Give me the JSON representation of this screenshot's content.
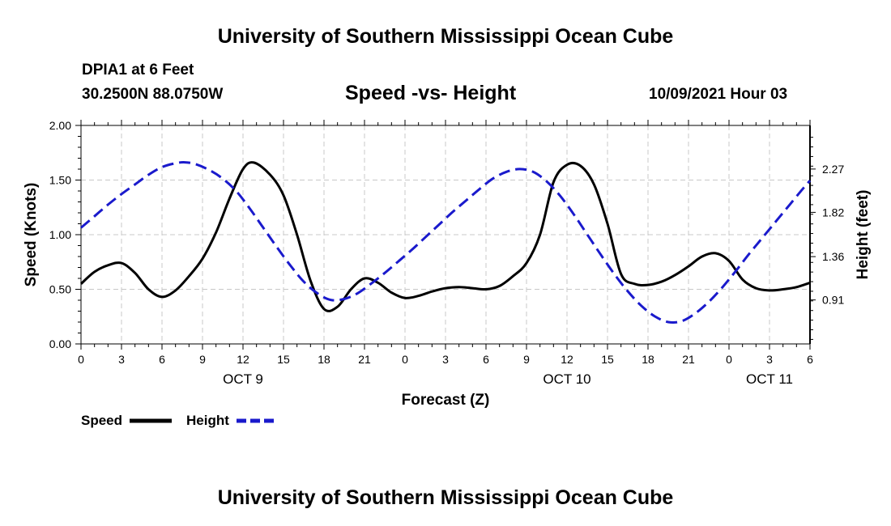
{
  "header": {
    "title": "University of Southern Mississippi Ocean Cube",
    "station": "DPIA1 at 6 Feet",
    "coords": "30.2500N  88.0750W",
    "datetime": "10/09/2021 Hour 03"
  },
  "footer": {
    "title": "University of Southern Mississippi Ocean Cube"
  },
  "colors": {
    "speed": "#000000",
    "height": "#1a1acc",
    "grid": "#c8c8c8"
  },
  "chart_data": {
    "type": "line",
    "title": "Speed -vs- Height",
    "xlabel": "Forecast (Z)",
    "ylabel": "Speed (Knots)",
    "y2label": "Height (feet)",
    "xlim": [
      0,
      54
    ],
    "ylim": [
      0,
      2
    ],
    "y2lim": [
      0.453,
      2.723
    ],
    "x_ticks": [
      0,
      3,
      6,
      9,
      12,
      15,
      18,
      21,
      24,
      27,
      30,
      33,
      36,
      39,
      42,
      45,
      48,
      51,
      54
    ],
    "x_tick_labels": [
      "0",
      "3",
      "6",
      "9",
      "12",
      "15",
      "18",
      "21",
      "0",
      "3",
      "6",
      "9",
      "12",
      "15",
      "18",
      "21",
      "0",
      "3",
      "6"
    ],
    "date_labels": [
      {
        "x": 12,
        "label": "OCT 9"
      },
      {
        "x": 36,
        "label": "OCT 10"
      },
      {
        "x": 51,
        "label": "OCT 11"
      }
    ],
    "y_ticks": [
      0,
      0.5,
      1.0,
      1.5,
      2.0
    ],
    "y_tick_labels": [
      "0.00",
      "0.50",
      "1.00",
      "1.50",
      "2.00"
    ],
    "y2_ticks": [
      0.91,
      1.36,
      1.82,
      2.27
    ],
    "y2_tick_labels": [
      "0.91",
      "1.36",
      "1.82",
      "2.27"
    ],
    "legend": [
      "Speed",
      "Height"
    ],
    "series": [
      {
        "name": "Speed",
        "axis": "left",
        "style": "solid",
        "x": [
          0,
          1,
          2,
          3,
          4,
          5,
          6,
          7,
          8,
          9,
          10,
          11,
          12,
          12.8,
          14,
          15,
          16,
          17,
          18,
          19,
          20,
          21,
          22,
          23,
          24,
          25,
          26,
          27,
          28,
          29,
          30,
          31,
          32,
          33,
          34,
          35,
          36,
          37,
          38,
          39,
          40,
          41,
          42,
          43,
          44,
          45,
          46,
          47,
          48,
          49,
          50,
          51,
          52,
          53,
          54
        ],
        "values": [
          0.55,
          0.66,
          0.72,
          0.74,
          0.65,
          0.5,
          0.43,
          0.49,
          0.62,
          0.78,
          1.02,
          1.33,
          1.6,
          1.66,
          1.55,
          1.36,
          1.0,
          0.58,
          0.32,
          0.34,
          0.5,
          0.6,
          0.56,
          0.47,
          0.42,
          0.44,
          0.48,
          0.51,
          0.52,
          0.51,
          0.5,
          0.53,
          0.62,
          0.74,
          1.0,
          1.48,
          1.64,
          1.63,
          1.46,
          1.1,
          0.64,
          0.55,
          0.54,
          0.57,
          0.63,
          0.71,
          0.8,
          0.83,
          0.76,
          0.59,
          0.51,
          0.49,
          0.5,
          0.52,
          0.56
        ]
      },
      {
        "name": "Height",
        "axis": "right",
        "style": "dashed",
        "x": [
          0,
          1,
          2,
          3,
          4,
          5,
          6,
          7,
          7.7,
          8.5,
          9.5,
          10.5,
          11.5,
          12.5,
          13.5,
          14.5,
          15.5,
          16.5,
          17.5,
          18.5,
          19.5,
          20.5,
          21.5,
          22.5,
          23.5,
          24.5,
          25.5,
          26.5,
          27.5,
          28.5,
          29.5,
          30.5,
          31.5,
          32.5,
          33.5,
          34.5,
          35.5,
          36.5,
          37.5,
          38.5,
          39.5,
          40.5,
          41.5,
          42.5,
          43.5,
          44.5,
          45.5,
          46.5,
          47.5,
          48.5,
          49.5,
          50.5,
          51.5,
          52.5,
          53.5,
          54
        ],
        "values": [
          1.66,
          1.78,
          1.9,
          2.01,
          2.11,
          2.21,
          2.29,
          2.33,
          2.34,
          2.32,
          2.26,
          2.17,
          2.04,
          1.86,
          1.66,
          1.46,
          1.27,
          1.1,
          0.98,
          0.91,
          0.92,
          0.98,
          1.08,
          1.19,
          1.31,
          1.43,
          1.56,
          1.69,
          1.82,
          1.94,
          2.06,
          2.17,
          2.24,
          2.27,
          2.24,
          2.14,
          1.99,
          1.8,
          1.59,
          1.38,
          1.18,
          1.0,
          0.85,
          0.74,
          0.68,
          0.69,
          0.77,
          0.89,
          1.04,
          1.21,
          1.39,
          1.56,
          1.73,
          1.9,
          2.07,
          2.15
        ]
      }
    ]
  }
}
